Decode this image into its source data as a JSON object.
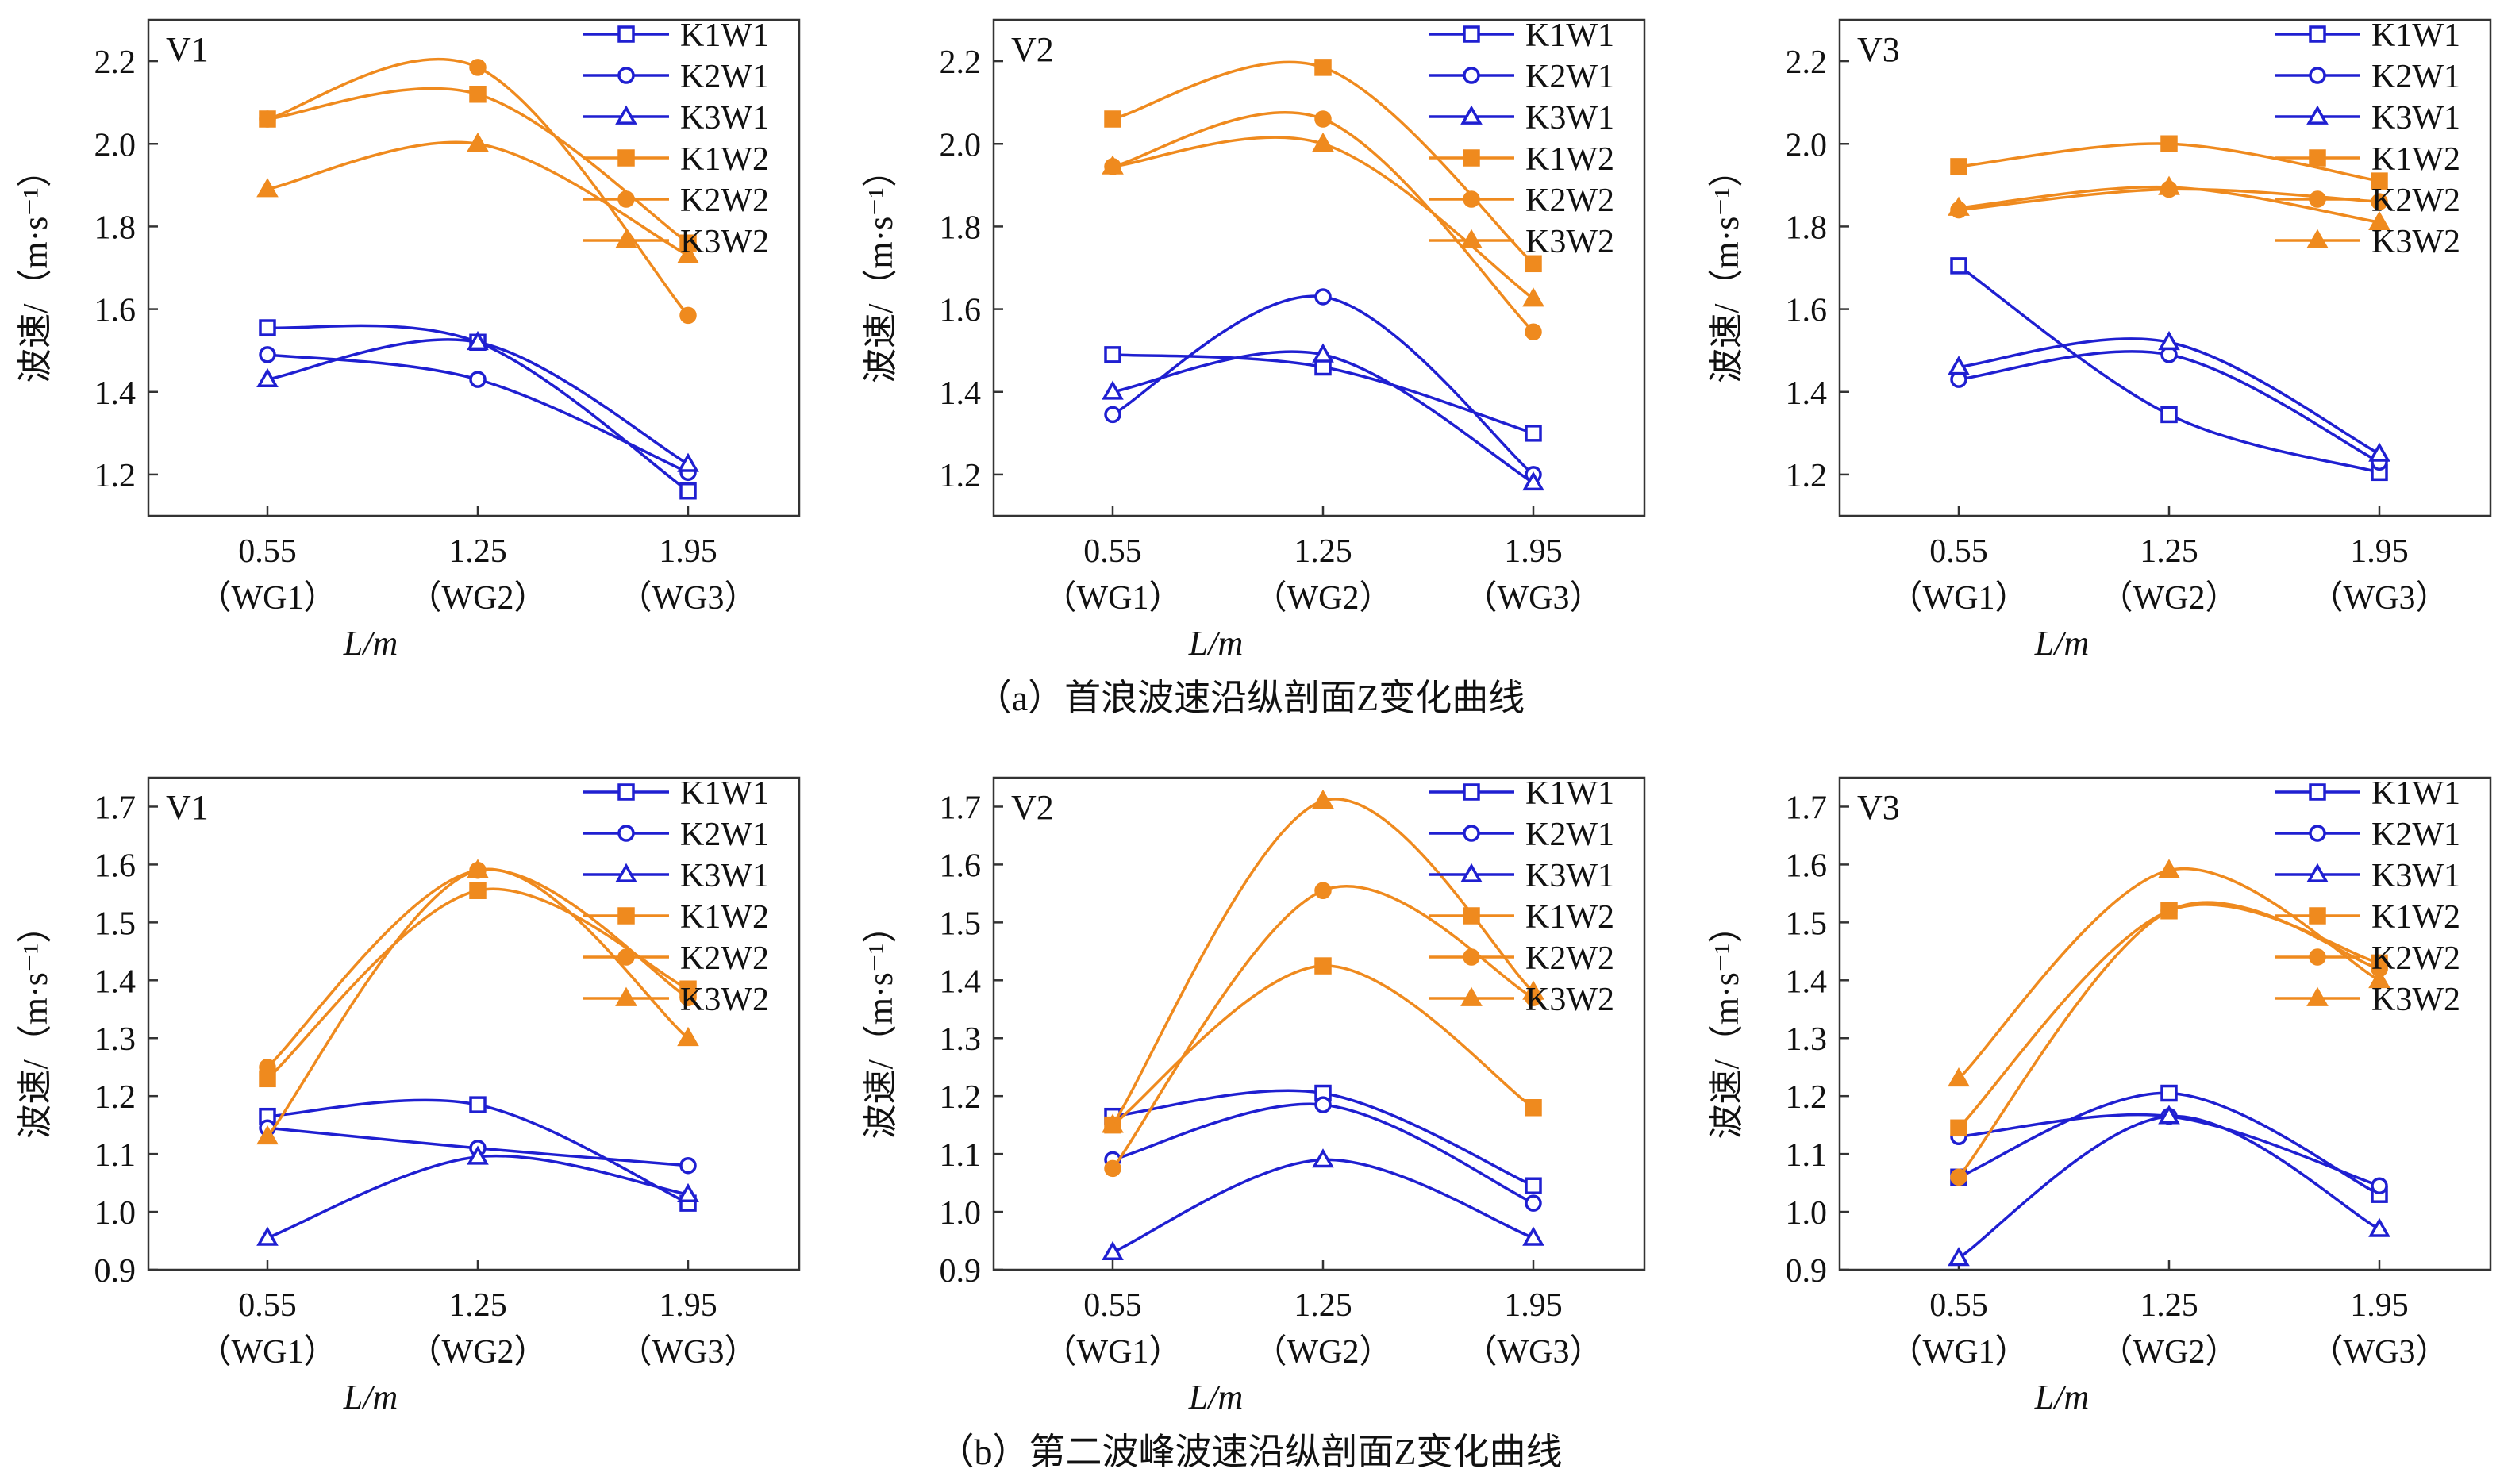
{
  "figure": {
    "caption_a": "（a）首浪波速沿纵剖面Z变化曲线",
    "caption_b": "（b）第二波峰波速沿纵剖面Z变化曲线"
  },
  "colors": {
    "blue": "#1f1fd1",
    "orange": "#ef8a1e",
    "axis": "#333333"
  },
  "chart_data": [
    {
      "type": "line",
      "panel_label": "V1",
      "ylabel": "波速/（m·s⁻¹）",
      "xlabel": "L/m",
      "x": [
        "0.55",
        "1.25",
        "1.95"
      ],
      "x_sublabels": [
        "（WG1）",
        "（WG2）",
        "（WG3）"
      ],
      "ylim": [
        1.1,
        2.3
      ],
      "yticks": [
        "1.2",
        "1.4",
        "1.6",
        "1.8",
        "2.0",
        "2.2"
      ],
      "legend_position": "top-right",
      "series": [
        {
          "name": "K1W1",
          "marker": "square-open",
          "color": "blue",
          "values": [
            1.555,
            1.52,
            1.16
          ]
        },
        {
          "name": "K2W1",
          "marker": "circle-open",
          "color": "blue",
          "values": [
            1.49,
            1.43,
            1.205
          ]
        },
        {
          "name": "K3W1",
          "marker": "triangle-open",
          "color": "blue",
          "values": [
            1.43,
            1.52,
            1.225
          ]
        },
        {
          "name": "K1W2",
          "marker": "square-filled",
          "color": "orange",
          "values": [
            2.06,
            2.12,
            1.76
          ]
        },
        {
          "name": "K2W2",
          "marker": "circle-filled",
          "color": "orange",
          "values": [
            2.06,
            2.185,
            1.585
          ]
        },
        {
          "name": "K3W2",
          "marker": "triangle-filled",
          "color": "orange",
          "values": [
            1.89,
            2.0,
            1.73
          ]
        }
      ]
    },
    {
      "type": "line",
      "panel_label": "V2",
      "ylabel": "波速/（m·s⁻¹）",
      "xlabel": "L/m",
      "x": [
        "0.55",
        "1.25",
        "1.95"
      ],
      "x_sublabels": [
        "（WG1）",
        "（WG2）",
        "（WG3）"
      ],
      "ylim": [
        1.1,
        2.3
      ],
      "yticks": [
        "1.2",
        "1.4",
        "1.6",
        "1.8",
        "2.0",
        "2.2"
      ],
      "legend_position": "top-right",
      "series": [
        {
          "name": "K1W1",
          "marker": "square-open",
          "color": "blue",
          "values": [
            1.49,
            1.46,
            1.3
          ]
        },
        {
          "name": "K2W1",
          "marker": "circle-open",
          "color": "blue",
          "values": [
            1.345,
            1.63,
            1.2
          ]
        },
        {
          "name": "K3W1",
          "marker": "triangle-open",
          "color": "blue",
          "values": [
            1.4,
            1.49,
            1.18
          ]
        },
        {
          "name": "K1W2",
          "marker": "square-filled",
          "color": "orange",
          "values": [
            2.06,
            2.185,
            1.71
          ]
        },
        {
          "name": "K2W2",
          "marker": "circle-filled",
          "color": "orange",
          "values": [
            1.945,
            2.06,
            1.545
          ]
        },
        {
          "name": "K3W2",
          "marker": "triangle-filled",
          "color": "orange",
          "values": [
            1.945,
            2.0,
            1.625
          ]
        }
      ]
    },
    {
      "type": "line",
      "panel_label": "V3",
      "ylabel": "波速/（m·s⁻¹）",
      "xlabel": "L/m",
      "x": [
        "0.55",
        "1.25",
        "1.95"
      ],
      "x_sublabels": [
        "（WG1）",
        "（WG2）",
        "（WG3）"
      ],
      "ylim": [
        1.1,
        2.3
      ],
      "yticks": [
        "1.2",
        "1.4",
        "1.6",
        "1.8",
        "2.0",
        "2.2"
      ],
      "legend_position": "top-right",
      "series": [
        {
          "name": "K1W1",
          "marker": "square-open",
          "color": "blue",
          "values": [
            1.705,
            1.345,
            1.205
          ]
        },
        {
          "name": "K2W1",
          "marker": "circle-open",
          "color": "blue",
          "values": [
            1.43,
            1.49,
            1.23
          ]
        },
        {
          "name": "K3W1",
          "marker": "triangle-open",
          "color": "blue",
          "values": [
            1.46,
            1.52,
            1.25
          ]
        },
        {
          "name": "K1W2",
          "marker": "square-filled",
          "color": "orange",
          "values": [
            1.945,
            2.0,
            1.91
          ]
        },
        {
          "name": "K2W2",
          "marker": "circle-filled",
          "color": "orange",
          "values": [
            1.84,
            1.89,
            1.86
          ]
        },
        {
          "name": "K3W2",
          "marker": "triangle-filled",
          "color": "orange",
          "values": [
            1.845,
            1.895,
            1.81
          ]
        }
      ]
    },
    {
      "type": "line",
      "panel_label": "V1",
      "ylabel": "波速/（m·s⁻¹）",
      "xlabel": "L/m",
      "x": [
        "0.55",
        "1.25",
        "1.95"
      ],
      "x_sublabels": [
        "（WG1）",
        "（WG2）",
        "（WG3）"
      ],
      "ylim": [
        0.9,
        1.75
      ],
      "yticks": [
        "0.9",
        "1.0",
        "1.1",
        "1.2",
        "1.3",
        "1.4",
        "1.5",
        "1.6",
        "1.7"
      ],
      "legend_position": "top-right",
      "series": [
        {
          "name": "K1W1",
          "marker": "square-open",
          "color": "blue",
          "values": [
            1.165,
            1.185,
            1.015
          ]
        },
        {
          "name": "K2W1",
          "marker": "circle-open",
          "color": "blue",
          "values": [
            1.145,
            1.11,
            1.08
          ]
        },
        {
          "name": "K3W1",
          "marker": "triangle-open",
          "color": "blue",
          "values": [
            0.955,
            1.095,
            1.03
          ]
        },
        {
          "name": "K1W2",
          "marker": "square-filled",
          "color": "orange",
          "values": [
            1.23,
            1.555,
            1.385
          ]
        },
        {
          "name": "K2W2",
          "marker": "circle-filled",
          "color": "orange",
          "values": [
            1.25,
            1.59,
            1.37
          ]
        },
        {
          "name": "K3W2",
          "marker": "triangle-filled",
          "color": "orange",
          "values": [
            1.13,
            1.59,
            1.3
          ]
        }
      ]
    },
    {
      "type": "line",
      "panel_label": "V2",
      "ylabel": "波速/（m·s⁻¹）",
      "xlabel": "L/m",
      "x": [
        "0.55",
        "1.25",
        "1.95"
      ],
      "x_sublabels": [
        "（WG1）",
        "（WG2）",
        "（WG3）"
      ],
      "ylim": [
        0.9,
        1.75
      ],
      "yticks": [
        "0.9",
        "1.0",
        "1.1",
        "1.2",
        "1.3",
        "1.4",
        "1.5",
        "1.6",
        "1.7"
      ],
      "legend_position": "top-right",
      "series": [
        {
          "name": "K1W1",
          "marker": "square-open",
          "color": "blue",
          "values": [
            1.165,
            1.205,
            1.045
          ]
        },
        {
          "name": "K2W1",
          "marker": "circle-open",
          "color": "blue",
          "values": [
            1.09,
            1.185,
            1.015
          ]
        },
        {
          "name": "K3W1",
          "marker": "triangle-open",
          "color": "blue",
          "values": [
            0.93,
            1.09,
            0.955
          ]
        },
        {
          "name": "K1W2",
          "marker": "square-filled",
          "color": "orange",
          "values": [
            1.15,
            1.425,
            1.18
          ]
        },
        {
          "name": "K2W2",
          "marker": "circle-filled",
          "color": "orange",
          "values": [
            1.075,
            1.555,
            1.37
          ]
        },
        {
          "name": "K3W2",
          "marker": "triangle-filled",
          "color": "orange",
          "values": [
            1.15,
            1.71,
            1.38
          ]
        }
      ]
    },
    {
      "type": "line",
      "panel_label": "V3",
      "ylabel": "波速/（m·s⁻¹）",
      "xlabel": "L/m",
      "x": [
        "0.55",
        "1.25",
        "1.95"
      ],
      "x_sublabels": [
        "（WG1）",
        "（WG2）",
        "（WG3）"
      ],
      "ylim": [
        0.9,
        1.75
      ],
      "yticks": [
        "0.9",
        "1.0",
        "1.1",
        "1.2",
        "1.3",
        "1.4",
        "1.5",
        "1.6",
        "1.7"
      ],
      "legend_position": "top-right",
      "series": [
        {
          "name": "K1W1",
          "marker": "square-open",
          "color": "blue",
          "values": [
            1.06,
            1.205,
            1.03
          ]
        },
        {
          "name": "K2W1",
          "marker": "circle-open",
          "color": "blue",
          "values": [
            1.13,
            1.165,
            1.045
          ]
        },
        {
          "name": "K3W1",
          "marker": "triangle-open",
          "color": "blue",
          "values": [
            0.92,
            1.165,
            0.97
          ]
        },
        {
          "name": "K1W2",
          "marker": "square-filled",
          "color": "orange",
          "values": [
            1.145,
            1.52,
            1.43
          ]
        },
        {
          "name": "K2W2",
          "marker": "circle-filled",
          "color": "orange",
          "values": [
            1.06,
            1.52,
            1.42
          ]
        },
        {
          "name": "K3W2",
          "marker": "triangle-filled",
          "color": "orange",
          "values": [
            1.23,
            1.59,
            1.4
          ]
        }
      ]
    }
  ]
}
